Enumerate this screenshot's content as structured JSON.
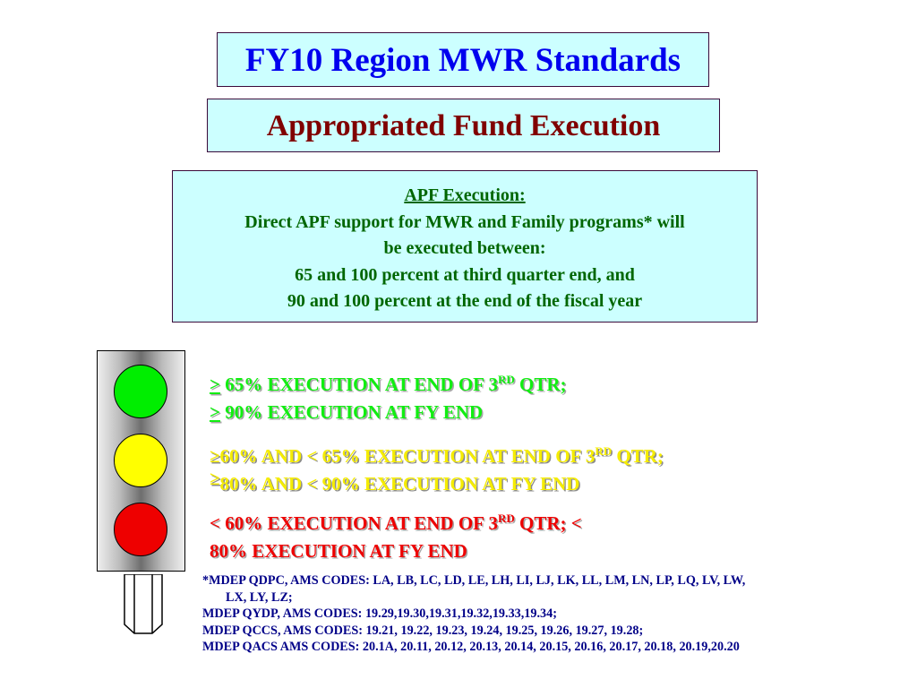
{
  "header": {
    "title": "FY10 Region MWR Standards",
    "subtitle": "Appropriated Fund Execution",
    "colors": {
      "title": "#0000ee",
      "subtitle": "#800000",
      "box_fill": "#ccffff"
    }
  },
  "apf": {
    "heading": "APF Execution:",
    "lines": [
      "Direct APF support for MWR and Family programs* will",
      "be executed between:",
      "65 and 100 percent at third quarter end, and",
      "90 and 100 percent at the end of the fiscal year"
    ]
  },
  "traffic_light": {
    "lamps": [
      "green",
      "yellow",
      "red"
    ],
    "colors": {
      "green": "#00ee00",
      "yellow": "#ffff00",
      "red": "#ee0000"
    }
  },
  "status": {
    "green": {
      "line1_sym": ">",
      "line1_text": " 65% EXECUTION AT END OF 3",
      "line1_sup": "RD",
      "line1_end": " QTR;",
      "line2_sym": ">",
      "line2_text": " 90% EXECUTION AT FY END"
    },
    "yellow": {
      "line1_sym": "≥",
      "line1_text": "60% AND < 65% EXECUTION AT END OF 3",
      "line1_sup": "RD",
      "line1_end": " QTR;",
      "line2_sym": "≥",
      "line2_text": "80% AND < 90% EXECUTION AT FY END"
    },
    "red": {
      "line1_text": "< 60% EXECUTION AT END OF 3",
      "line1_sup": "RD",
      "line1_end": " QTR; <",
      "line2_text": "80% EXECUTION AT FY END"
    }
  },
  "codes": {
    "line1": "*MDEP QDPC, AMS CODES:  LA, LB, LC, LD, LE, LH, LI, LJ, LK, LL, LM, LN, LP, LQ, LV, LW,",
    "line1b": "LX, LY, LZ;",
    "line2": "MDEP QYDP, AMS CODES: 19.29,19.30,19.31,19.32,19.33,19.34;",
    "line3": "MDEP QCCS, AMS CODES:  19.21, 19.22, 19.23, 19.24, 19.25, 19.26, 19.27, 19.28;",
    "line4": "MDEP QACS AMS CODES:   20.1A, 20.11, 20.12, 20.13, 20.14, 20.15, 20.16, 20.17, 20.18, 20.19,20.20"
  }
}
